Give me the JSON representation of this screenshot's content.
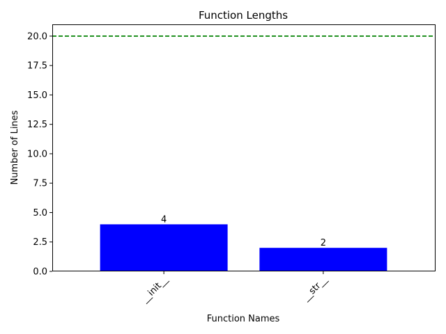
{
  "chart_data": {
    "type": "bar",
    "title": "Function Lengths",
    "xlabel": "Function Names",
    "ylabel": "Number of Lines",
    "categories": [
      "__init__",
      "__str__"
    ],
    "values": [
      4,
      2
    ],
    "data_labels": [
      "4",
      "2"
    ],
    "ylim": [
      0,
      21
    ],
    "yticks": [
      0.0,
      2.5,
      5.0,
      7.5,
      10.0,
      12.5,
      15.0,
      17.5,
      20.0
    ],
    "ytick_labels": [
      "0.0",
      "2.5",
      "5.0",
      "7.5",
      "10.0",
      "12.5",
      "15.0",
      "17.5",
      "20.0"
    ],
    "xtick_rotation": 45,
    "grid": false,
    "bar_color": "#0000ff",
    "reference_line": {
      "y": 20,
      "color": "#008000",
      "style": "dashed"
    }
  }
}
